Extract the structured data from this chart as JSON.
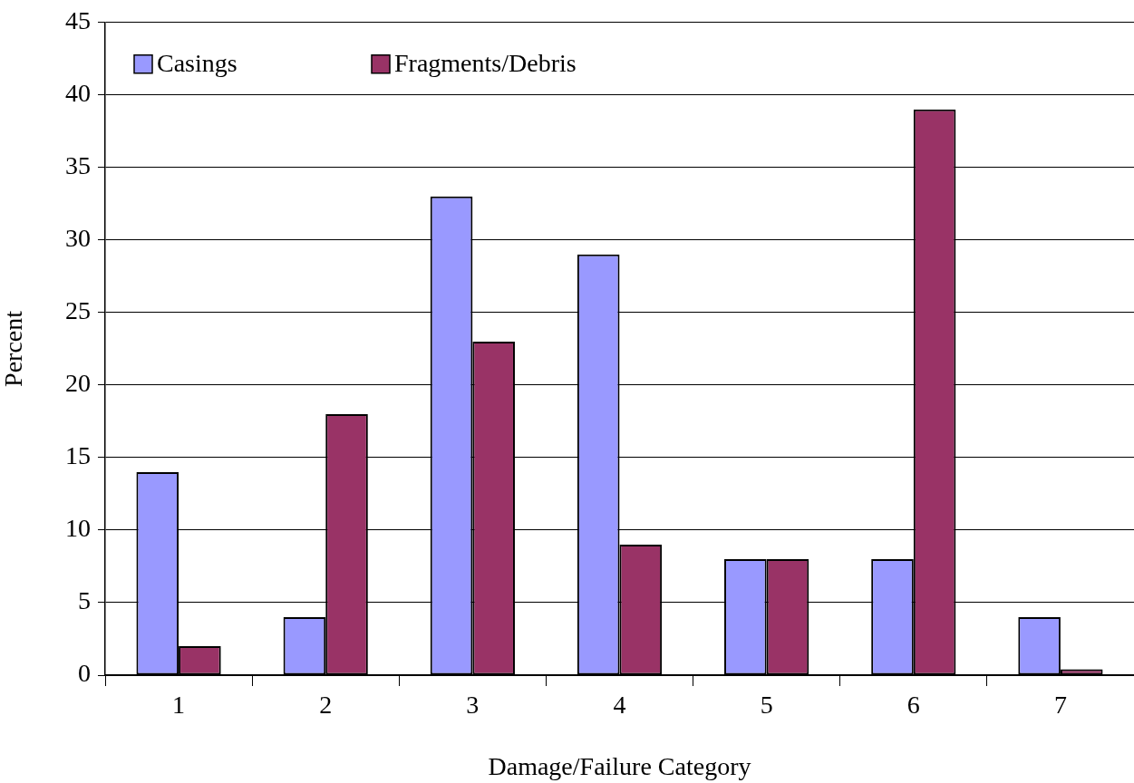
{
  "chart_data": {
    "type": "bar",
    "xlabel": "Damage/Failure Category",
    "ylabel": "Percent",
    "categories": [
      "1",
      "2",
      "3",
      "4",
      "5",
      "6",
      "7"
    ],
    "series": [
      {
        "name": "Casings",
        "color": "#9999ff",
        "values": [
          14,
          4,
          33,
          29,
          8,
          8,
          4
        ]
      },
      {
        "name": "Fragments/Debris",
        "color": "#993366",
        "values": [
          2,
          18,
          23,
          9,
          8,
          39,
          0.4
        ]
      }
    ],
    "ylim": [
      0,
      45
    ],
    "yticks": [
      0,
      5,
      10,
      15,
      20,
      25,
      30,
      35,
      40,
      45
    ],
    "grid": "y",
    "legend": "top left"
  }
}
